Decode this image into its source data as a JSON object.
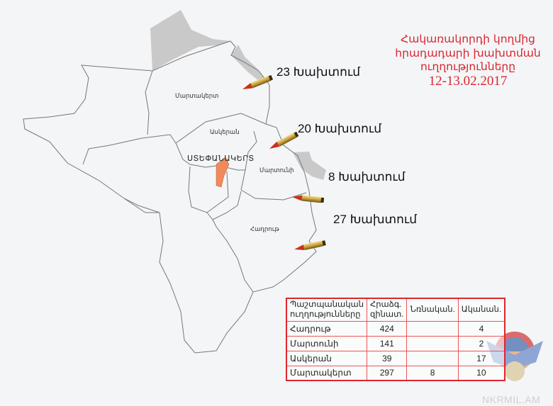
{
  "title": {
    "line1": "Հակառակորդի կողմից",
    "line2": "հրադադարի խախտման",
    "line3": "ուղղությունները",
    "date": "12-13.02.2017"
  },
  "regions": {
    "martakert": "Մարտակերտ",
    "askeran": "Ասկերան",
    "stepanakert": "ՍՏԵՓԱՆԱԿԵՐՏ",
    "martuni": "Մարտունի",
    "hadrut": "Հադրութ"
  },
  "violations": [
    {
      "label": "23 Խախտում",
      "count": 23
    },
    {
      "label": "20 Խախտում",
      "count": 20
    },
    {
      "label": "8 Խախտում",
      "count": 8
    },
    {
      "label": "27 Խախտում",
      "count": 27
    }
  ],
  "table": {
    "headers": [
      "Պաշտպանական ուղղությունները",
      "Հրաձգ. զինատ.",
      "Նռնական.",
      "Ականան."
    ],
    "rows": [
      [
        "Հադրութ",
        "424",
        "",
        "4"
      ],
      [
        "Մարտունի",
        "141",
        "",
        "2"
      ],
      [
        "Ասկերան",
        "39",
        "",
        "17"
      ],
      [
        "Մարտակերտ",
        "297",
        "8",
        "10"
      ]
    ]
  },
  "watermark": "NKRMIL.AM",
  "colors": {
    "title": "#d9262e",
    "occupied": "#c8c8c8",
    "capital": "#f08a5a",
    "table_border": "#e0262e"
  }
}
